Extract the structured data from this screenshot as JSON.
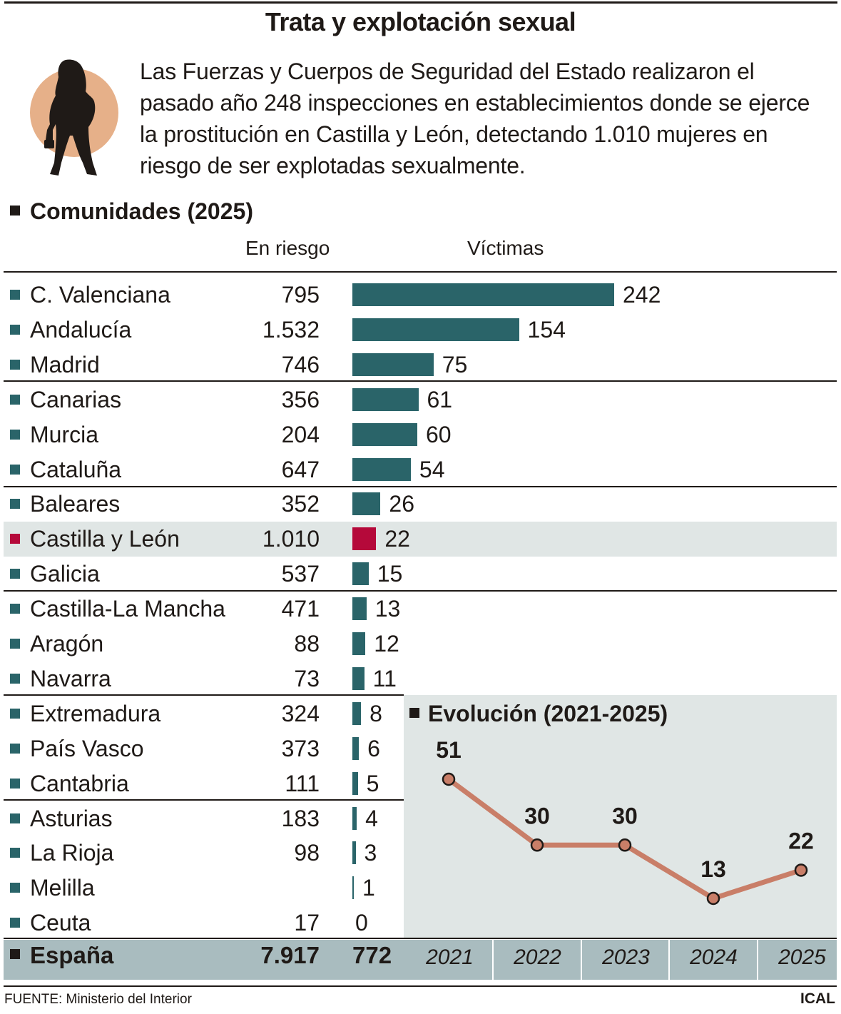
{
  "title": "Trata y explotación sexual",
  "intro": "Las Fuerzas y Cuerpos de Seguridad del Estado realizaron el pasado año 248 inspecciones en establecimientos donde se ejerce la prostitución en Castilla y León, detectando 1.010 mujeres en riesgo de ser explotadas sexualmente.",
  "section_title": "Comunidades (2025)",
  "col_risk": "En riesgo",
  "col_victims": "Víctimas",
  "colors": {
    "bar": "#2a6469",
    "highlight": "#b5093a",
    "line": "#c97e68",
    "panel": "#e0e6e5",
    "band": "#a9bcbf"
  },
  "chart_data": [
    {
      "type": "bar",
      "orientation": "horizontal",
      "categories": [
        "C. Valenciana",
        "Andalucía",
        "Madrid",
        "Canarias",
        "Murcia",
        "Cataluña",
        "Baleares",
        "Castilla y León",
        "Galicia",
        "Castilla-La Mancha",
        "Aragón",
        "Navarra",
        "Extremadura",
        "País Vasco",
        "Cantabria",
        "Asturias",
        "La Rioja",
        "Melilla",
        "Ceuta"
      ],
      "risk_labels": [
        "795",
        "1.532",
        "746",
        "356",
        "204",
        "647",
        "352",
        "1.010",
        "537",
        "471",
        "88",
        "73",
        "324",
        "373",
        "111",
        "183",
        "98",
        "",
        "17"
      ],
      "series": [
        {
          "name": "Víctimas",
          "values": [
            242,
            154,
            75,
            61,
            60,
            54,
            26,
            22,
            15,
            13,
            12,
            11,
            8,
            6,
            5,
            4,
            3,
            1,
            0
          ]
        }
      ],
      "highlight": "Castilla y León",
      "total": {
        "label": "España",
        "risk": "7.917",
        "victims": "772"
      }
    },
    {
      "type": "line",
      "title": "Evolución (2021-2025)",
      "x": [
        "2021",
        "2022",
        "2023",
        "2024",
        "2025"
      ],
      "values": [
        51,
        30,
        30,
        13,
        22
      ]
    }
  ],
  "source": "FUENTE: Ministerio del Interior",
  "brand": "ICAL"
}
